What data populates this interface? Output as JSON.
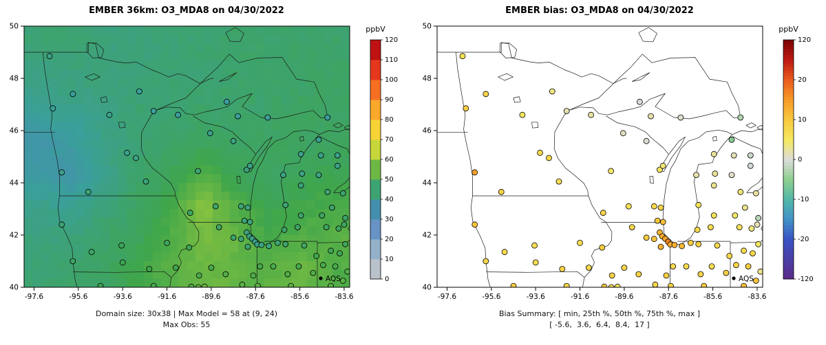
{
  "page": {
    "background": "#ffffff"
  },
  "panels": [
    {
      "key": "model",
      "title": "EMBER 36km: O3_MDA8 on 04/30/2022",
      "captions": [
        "Domain size: 30x38 | Max Model = 58 at (9, 24)",
        "Max Obs: 55"
      ],
      "colorbar_label": "ppbV",
      "legend_label": "AQS"
    },
    {
      "key": "bias",
      "title": "EMBER bias: O3_MDA8 on 04/30/2022",
      "captions": [
        "Bias Summary: [ min, 25th %, 50th %, 75th %, max ]",
        "[ -5.6,  3.6,  6.4,  8.4,  17 ]"
      ],
      "colorbar_label": "ppbV",
      "legend_label": "AQS"
    }
  ],
  "chart_data": {
    "type": "map",
    "date": "04/30/2022",
    "variable": "O3_MDA8",
    "units": "ppbV",
    "lon_range": [
      -98.05,
      -83.35
    ],
    "lat_range": [
      40,
      50
    ],
    "x_axis": {
      "ticks": [
        -97.6,
        -95.6,
        -93.6,
        -91.6,
        -89.6,
        -87.6,
        -85.6,
        -83.6
      ]
    },
    "y_axis": {
      "ticks": [
        40,
        42,
        44,
        46,
        48,
        50
      ]
    },
    "model_panel": {
      "type": "raster-map",
      "domain_size": "30x38",
      "max_model": {
        "value": 58,
        "cell": "(9, 24)"
      },
      "max_obs": 55,
      "colorscale": {
        "values": [
          0,
          10,
          20,
          30,
          40,
          50,
          60,
          70,
          80,
          90,
          100,
          110,
          120
        ],
        "colors": [
          "#c8c8c8",
          "#a9bccb",
          "#7fa6c9",
          "#4f7fc1",
          "#3b9f9b",
          "#3fa64b",
          "#9bca3c",
          "#f2e33a",
          "#fdc32f",
          "#fb8d26",
          "#f1511e",
          "#d91c1c",
          "#a50808"
        ]
      },
      "grid": {
        "lon_centers": [
          -97.32,
          -95.85,
          -94.38,
          -92.91,
          -91.44,
          -89.97,
          -88.5,
          -87.03,
          -85.56,
          -84.09
        ],
        "lat_centers": [
          49.38,
          48.13,
          46.88,
          45.63,
          44.38,
          43.13,
          41.88,
          40.63
        ],
        "values": [
          [
            45,
            45,
            44,
            44,
            45,
            45,
            46,
            46,
            46,
            46
          ],
          [
            43,
            44,
            44,
            44,
            45,
            45,
            46,
            46,
            46,
            47
          ],
          [
            41,
            42,
            43,
            45,
            45,
            46,
            46,
            46,
            47,
            47
          ],
          [
            37,
            39,
            43,
            45,
            46,
            47,
            47,
            47,
            47,
            47
          ],
          [
            38,
            37,
            42,
            46,
            48,
            52,
            48,
            47,
            48,
            49
          ],
          [
            42,
            41,
            44,
            47,
            50,
            58,
            52,
            49,
            50,
            51
          ],
          [
            44,
            44,
            46,
            48,
            52,
            56,
            54,
            51,
            52,
            53
          ],
          [
            45,
            46,
            47,
            50,
            53,
            55,
            54,
            53,
            55,
            52
          ]
        ]
      }
    },
    "bias_panel": {
      "type": "point-map",
      "colorbar_ticks": [
        120,
        20,
        10,
        0,
        -10,
        -20,
        -120
      ],
      "summary": {
        "min": -5.6,
        "p25": 3.6,
        "median": 6.4,
        "p75": 8.4,
        "max": 17
      },
      "colorscale": {
        "fractions": [
          0,
          0.167,
          0.25,
          0.333,
          0.417,
          0.5,
          0.583,
          0.667,
          0.75,
          0.833,
          0.917,
          1
        ],
        "colors": [
          "#5b2a87",
          "#3a53c4",
          "#4292c6",
          "#52b8a8",
          "#8fcf8f",
          "#dcdcdc",
          "#f5e85f",
          "#f7c93e",
          "#f79b28",
          "#e95c1e",
          "#bc1a12",
          "#7a0403"
        ]
      }
    },
    "stations_fields": [
      "lon",
      "lat",
      "obs_ppbv",
      "bias_ppbv"
    ],
    "stations": [
      [
        -96.9,
        48.85,
        43,
        6.4
      ],
      [
        -96.75,
        46.85,
        41,
        9.2
      ],
      [
        -95.85,
        47.4,
        40,
        8.4
      ],
      [
        -94.2,
        46.6,
        42,
        5.1
      ],
      [
        -93.4,
        45.15,
        42,
        7.3
      ],
      [
        -93.0,
        44.95,
        43,
        8.1
      ],
      [
        -92.55,
        44.05,
        44,
        6.8
      ],
      [
        -96.35,
        44.4,
        42,
        14.2
      ],
      [
        -95.15,
        43.65,
        45,
        8.8
      ],
      [
        -92.85,
        47.5,
        40,
        3.6
      ],
      [
        -92.2,
        46.75,
        40,
        1.8
      ],
      [
        -91.1,
        46.6,
        40,
        2.2
      ],
      [
        -89.65,
        45.9,
        42,
        1.1
      ],
      [
        -88.6,
        45.6,
        43,
        0.4
      ],
      [
        -90.2,
        44.45,
        45,
        4.4
      ],
      [
        -89.4,
        43.1,
        46,
        6.2
      ],
      [
        -88.25,
        43.1,
        45,
        7.4
      ],
      [
        -87.95,
        43.05,
        44,
        8.2
      ],
      [
        -88.0,
        44.5,
        44,
        5.3
      ],
      [
        -87.85,
        44.65,
        43,
        4.1
      ],
      [
        -90.55,
        42.85,
        47,
        8.4
      ],
      [
        -88.1,
        42.55,
        45,
        10.3
      ],
      [
        -87.85,
        42.5,
        44,
        11.1
      ],
      [
        -95.85,
        41.0,
        47,
        8.1
      ],
      [
        -95.0,
        41.35,
        47,
        7.2
      ],
      [
        -93.65,
        41.6,
        48,
        6.4
      ],
      [
        -93.6,
        40.95,
        49,
        7.0
      ],
      [
        -92.4,
        40.7,
        50,
        8.3
      ],
      [
        -91.6,
        41.7,
        48,
        6.6
      ],
      [
        -90.6,
        41.52,
        49,
        9.4
      ],
      [
        -96.35,
        42.4,
        45,
        10.6
      ],
      [
        -91.2,
        40.75,
        50,
        7.7
      ],
      [
        -90.15,
        40.45,
        51,
        9.0
      ],
      [
        -89.6,
        40.75,
        51,
        7.8
      ],
      [
        -88.95,
        40.5,
        52,
        8.6
      ],
      [
        -89.25,
        42.3,
        47,
        7.9
      ],
      [
        -88.6,
        41.9,
        46,
        9.3
      ],
      [
        -88.25,
        41.85,
        45,
        10.4
      ],
      [
        -88.0,
        42.1,
        44,
        12.2
      ],
      [
        -87.88,
        41.95,
        43,
        13.0
      ],
      [
        -87.75,
        41.86,
        43,
        14.1
      ],
      [
        -87.62,
        41.74,
        42,
        17.0
      ],
      [
        -87.52,
        41.64,
        43,
        13.6
      ],
      [
        -87.95,
        41.55,
        45,
        12.4
      ],
      [
        -87.7,
        40.45,
        52,
        9.1
      ],
      [
        -88.2,
        40.1,
        53,
        8.0
      ],
      [
        -87.33,
        41.62,
        43,
        12.8
      ],
      [
        -87.0,
        41.58,
        44,
        11.6
      ],
      [
        -86.6,
        41.7,
        45,
        9.8
      ],
      [
        -86.25,
        41.65,
        46,
        8.9
      ],
      [
        -87.4,
        40.8,
        51,
        7.6
      ],
      [
        -86.8,
        40.8,
        51,
        6.9
      ],
      [
        -86.15,
        40.5,
        52,
        8.2
      ],
      [
        -85.65,
        40.8,
        51,
        6.6
      ],
      [
        -85.0,
        40.55,
        52,
        9.0
      ],
      [
        -85.4,
        41.6,
        47,
        7.5
      ],
      [
        -84.85,
        41.2,
        50,
        8.1
      ],
      [
        -86.0,
        40.05,
        53,
        9.6
      ],
      [
        -87.5,
        40.05,
        53,
        8.8
      ],
      [
        -86.3,
        42.2,
        46,
        7.7
      ],
      [
        -85.7,
        42.3,
        47,
        6.8
      ],
      [
        -85.55,
        42.75,
        46,
        5.9
      ],
      [
        -84.6,
        42.75,
        47,
        4.6
      ],
      [
        -84.4,
        42.3,
        48,
        5.8
      ],
      [
        -83.85,
        42.25,
        48,
        3.9
      ],
      [
        -83.6,
        42.4,
        47,
        1.6
      ],
      [
        -83.55,
        42.65,
        46,
        -2.3
      ],
      [
        -84.15,
        43.05,
        46,
        3.2
      ],
      [
        -83.65,
        43.6,
        45,
        2.4
      ],
      [
        -84.35,
        43.65,
        45,
        4.0
      ],
      [
        -85.55,
        43.9,
        44,
        3.1
      ],
      [
        -86.25,
        43.15,
        45,
        6.1
      ],
      [
        -86.35,
        44.3,
        43,
        2.0
      ],
      [
        -85.5,
        44.35,
        43,
        2.8
      ],
      [
        -84.75,
        44.3,
        43,
        0.8
      ],
      [
        -83.9,
        44.65,
        42,
        -0.6
      ],
      [
        -84.65,
        45.05,
        42,
        1.5
      ],
      [
        -85.55,
        45.1,
        42,
        2.6
      ],
      [
        -84.75,
        45.65,
        41,
        -5.6
      ],
      [
        -83.9,
        45.05,
        42,
        -1.2
      ],
      [
        -88.4,
        46.55,
        40,
        1.9
      ],
      [
        -87.05,
        46.5,
        40,
        0.6
      ],
      [
        -84.35,
        46.5,
        40,
        -2.8
      ],
      [
        -88.9,
        47.1,
        39,
        -0.3
      ],
      [
        -84.2,
        41.4,
        49,
        6.9
      ],
      [
        -83.8,
        41.3,
        49,
        7.8
      ],
      [
        -84.55,
        40.85,
        51,
        8.4
      ],
      [
        -84.0,
        40.8,
        51,
        9.2
      ],
      [
        -83.65,
        40.25,
        53,
        10.4
      ],
      [
        -84.2,
        40.05,
        53,
        11.0
      ],
      [
        -83.55,
        41.65,
        48,
        4.8
      ],
      [
        -83.45,
        40.6,
        52,
        3.3
      ],
      [
        -94.6,
        40.05,
        49,
        9.3
      ],
      [
        -92.2,
        40.05,
        51,
        7.9
      ],
      [
        -90.5,
        40.02,
        52,
        10.1
      ],
      [
        -90.18,
        40.0,
        54,
        6.4
      ],
      [
        -89.9,
        40.02,
        55,
        5.7
      ]
    ]
  }
}
